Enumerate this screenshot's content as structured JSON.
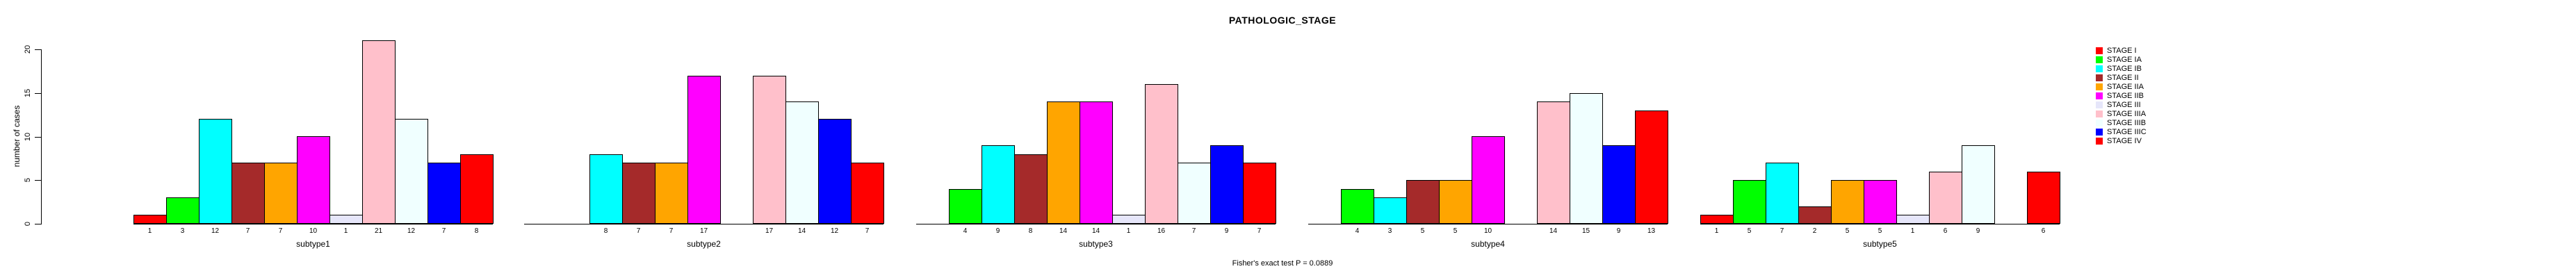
{
  "title": "PATHOLOGIC_STAGE",
  "footer": "Fisher's exact test P = 0.0889",
  "y_axis": {
    "label": "number of cases",
    "tick_labels": [
      "0",
      "5",
      "10",
      "15",
      "20"
    ],
    "tick_values": [
      0,
      5,
      10,
      15,
      20
    ],
    "max": 20
  },
  "legend": {
    "items": [
      {
        "label": "STAGE I",
        "color": "#FF0000"
      },
      {
        "label": "STAGE IA",
        "color": "#00FF00"
      },
      {
        "label": "STAGE IB",
        "color": "#00FFFF"
      },
      {
        "label": "STAGE II",
        "color": "#A52A2A"
      },
      {
        "label": "STAGE IIA",
        "color": "#FFA500"
      },
      {
        "label": "STAGE IIB",
        "color": "#FF00FF"
      },
      {
        "label": "STAGE III",
        "color": "#E6E6FA"
      },
      {
        "label": "STAGE IIIA",
        "color": "#FFC0CB"
      },
      {
        "label": "STAGE IIIB",
        "color": "#F0FFFF"
      },
      {
        "label": "STAGE IIIC",
        "color": "#0000FF"
      },
      {
        "label": "STAGE IV",
        "color": "#FF0000"
      }
    ]
  },
  "chart_data": {
    "type": "bar",
    "title": "PATHOLOGIC_STAGE",
    "ylabel": "number of cases",
    "ylim": [
      0,
      20
    ],
    "grid": false,
    "legend_position": "right",
    "annotation": "Fisher's exact test P = 0.0889",
    "stages": [
      "STAGE I",
      "STAGE IA",
      "STAGE IB",
      "STAGE II",
      "STAGE IIA",
      "STAGE IIB",
      "STAGE III",
      "STAGE IIIA",
      "STAGE IIIB",
      "STAGE IIIC",
      "STAGE IV"
    ],
    "stage_colors": [
      "#FF0000",
      "#00FF00",
      "#00FFFF",
      "#A52A2A",
      "#FFA500",
      "#FF00FF",
      "#E6E6FA",
      "#FFC0CB",
      "#F0FFFF",
      "#0000FF",
      "#FF0000"
    ],
    "groups": [
      {
        "label": "subtype1",
        "values": [
          1,
          3,
          12,
          7,
          7,
          10,
          1,
          21,
          12,
          7,
          8
        ]
      },
      {
        "label": "subtype2",
        "values": [
          0,
          0,
          8,
          7,
          7,
          17,
          0,
          17,
          14,
          12,
          7
        ]
      },
      {
        "label": "subtype3",
        "values": [
          0,
          4,
          9,
          8,
          14,
          14,
          1,
          16,
          7,
          9,
          7
        ]
      },
      {
        "label": "subtype4",
        "values": [
          0,
          4,
          3,
          5,
          5,
          10,
          0,
          14,
          15,
          9,
          13
        ]
      },
      {
        "label": "subtype5",
        "values": [
          1,
          5,
          7,
          2,
          5,
          5,
          1,
          6,
          9,
          0,
          6
        ]
      }
    ]
  }
}
